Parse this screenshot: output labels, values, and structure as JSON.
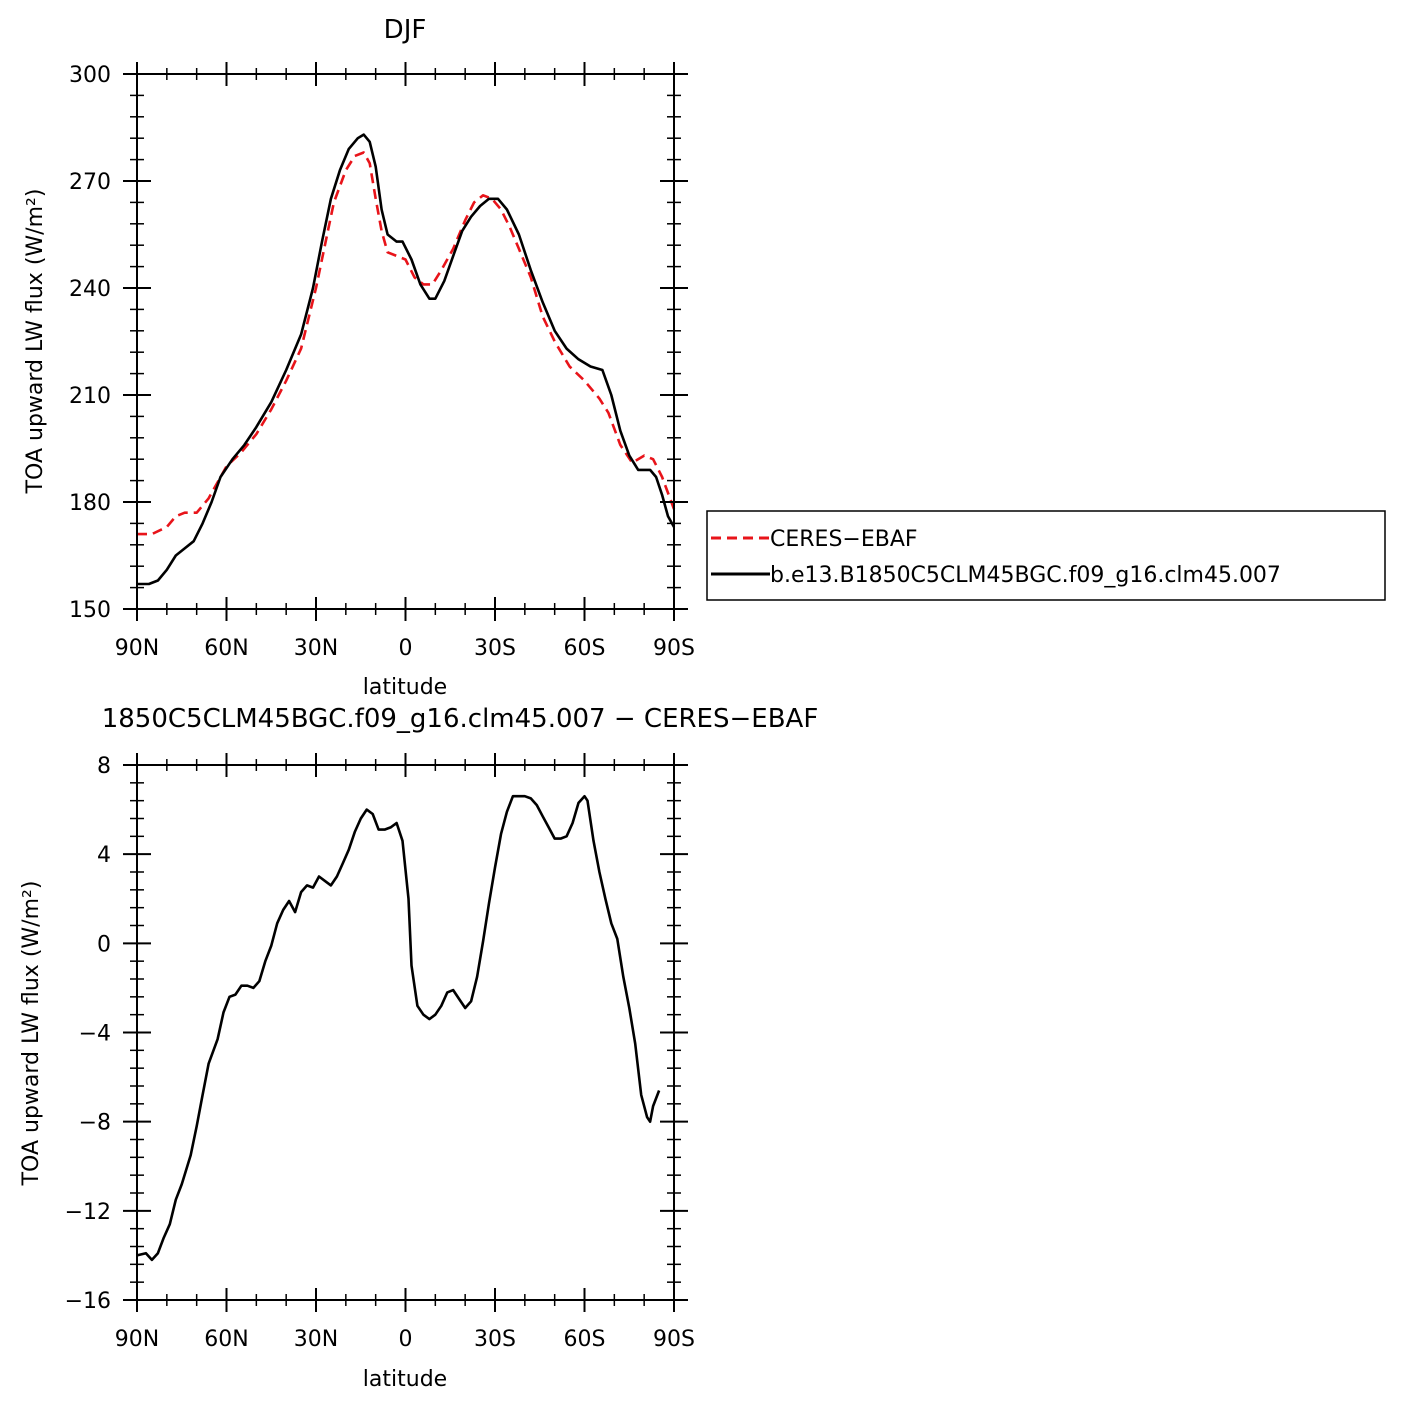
{
  "chart_data": [
    {
      "type": "line",
      "title": "DJF",
      "xlabel": "latitude",
      "ylabel": "TOA upward LW flux (W/m²)",
      "xlim": [
        -90,
        90
      ],
      "ylim": [
        150,
        300
      ],
      "xticks": [
        -90,
        -60,
        -30,
        0,
        30,
        60,
        90
      ],
      "xtick_labels": [
        "90N",
        "60N",
        "30N",
        "0",
        "30S",
        "60S",
        "90S"
      ],
      "yticks": [
        150,
        180,
        210,
        240,
        270,
        300
      ],
      "ytick_labels": [
        "150",
        "180",
        "210",
        "240",
        "270",
        "300"
      ],
      "legend": "right",
      "series": [
        {
          "name": "CERES−EBAF",
          "color": "#e8141a",
          "dash": "dashed",
          "points": [
            [
              -90,
              171
            ],
            [
              -85,
              171
            ],
            [
              -80,
              173
            ],
            [
              -77,
              176
            ],
            [
              -74,
              177
            ],
            [
              -70,
              177
            ],
            [
              -66,
              181
            ],
            [
              -60,
              190
            ],
            [
              -55,
              194
            ],
            [
              -50,
              199
            ],
            [
              -45,
              206
            ],
            [
              -40,
              214
            ],
            [
              -35,
              223
            ],
            [
              -30,
              240
            ],
            [
              -26,
              256
            ],
            [
              -24,
              264
            ],
            [
              -20,
              273
            ],
            [
              -17,
              277
            ],
            [
              -14,
              278
            ],
            [
              -12,
              275
            ],
            [
              -10,
              265
            ],
            [
              -8,
              256
            ],
            [
              -6,
              250
            ],
            [
              -3,
              249
            ],
            [
              0,
              248
            ],
            [
              3,
              243
            ],
            [
              6,
              241
            ],
            [
              9,
              241
            ],
            [
              12,
              245
            ],
            [
              16,
              251
            ],
            [
              20,
              259
            ],
            [
              23,
              264
            ],
            [
              26,
              266
            ],
            [
              29,
              265
            ],
            [
              32,
              262
            ],
            [
              35,
              257
            ],
            [
              38,
              251
            ],
            [
              42,
              243
            ],
            [
              46,
              232
            ],
            [
              50,
              225
            ],
            [
              55,
              218
            ],
            [
              60,
              214
            ],
            [
              65,
              209
            ],
            [
              68,
              205
            ],
            [
              72,
              196
            ],
            [
              76,
              191
            ],
            [
              80,
              193
            ],
            [
              83,
              192
            ],
            [
              86,
              187
            ],
            [
              90,
              178
            ]
          ]
        },
        {
          "name": "b.e13.B1850C5CLM45BGC.f09_g16.clm45.007",
          "color": "#000000",
          "dash": "solid",
          "points": [
            [
              -90,
              157
            ],
            [
              -86,
              157
            ],
            [
              -83,
              158
            ],
            [
              -80,
              161
            ],
            [
              -77,
              165
            ],
            [
              -74,
              167
            ],
            [
              -71,
              169
            ],
            [
              -68,
              174
            ],
            [
              -65,
              180
            ],
            [
              -62,
              187
            ],
            [
              -58,
              192
            ],
            [
              -54,
              196
            ],
            [
              -50,
              201
            ],
            [
              -45,
              208
            ],
            [
              -40,
              217
            ],
            [
              -35,
              227
            ],
            [
              -31,
              240
            ],
            [
              -28,
              253
            ],
            [
              -25,
              265
            ],
            [
              -22,
              273
            ],
            [
              -19,
              279
            ],
            [
              -16,
              282
            ],
            [
              -14,
              283
            ],
            [
              -12,
              281
            ],
            [
              -10,
              274
            ],
            [
              -8,
              262
            ],
            [
              -6,
              255
            ],
            [
              -3,
              253
            ],
            [
              -1,
              253
            ],
            [
              2,
              248
            ],
            [
              5,
              241
            ],
            [
              8,
              237
            ],
            [
              10,
              237
            ],
            [
              13,
              242
            ],
            [
              16,
              249
            ],
            [
              19,
              256
            ],
            [
              22,
              260
            ],
            [
              25,
              263
            ],
            [
              28,
              265
            ],
            [
              31,
              265
            ],
            [
              34,
              262
            ],
            [
              38,
              255
            ],
            [
              42,
              245
            ],
            [
              46,
              236
            ],
            [
              50,
              228
            ],
            [
              54,
              223
            ],
            [
              58,
              220
            ],
            [
              62,
              218
            ],
            [
              66,
              217
            ],
            [
              69,
              210
            ],
            [
              72,
              200
            ],
            [
              75,
              193
            ],
            [
              78,
              189
            ],
            [
              82,
              189
            ],
            [
              84,
              187
            ],
            [
              86,
              182
            ],
            [
              88,
              176
            ],
            [
              90,
              173
            ]
          ]
        }
      ]
    },
    {
      "type": "line",
      "title": "1850C5CLM45BGC.f09_g16.clm45.007 − CERES−EBAF",
      "xlabel": "latitude",
      "ylabel": "TOA upward LW flux (W/m²)",
      "xlim": [
        -90,
        90
      ],
      "ylim": [
        -16,
        8
      ],
      "xticks": [
        -90,
        -60,
        -30,
        0,
        30,
        60,
        90
      ],
      "xtick_labels": [
        "90N",
        "60N",
        "30N",
        "0",
        "30S",
        "60S",
        "90S"
      ],
      "yticks": [
        -16,
        -12,
        -8,
        -4,
        0,
        4,
        8
      ],
      "ytick_labels": [
        "−16",
        "−12",
        "−8",
        "−4",
        "0",
        "4",
        "8"
      ],
      "series": [
        {
          "name": "",
          "color": "#000000",
          "dash": "solid",
          "points": [
            [
              -90,
              -14
            ],
            [
              -87,
              -13.9
            ],
            [
              -85,
              -14.2
            ],
            [
              -83,
              -13.9
            ],
            [
              -81,
              -13.2
            ],
            [
              -79,
              -12.6
            ],
            [
              -77,
              -11.5
            ],
            [
              -75,
              -10.8
            ],
            [
              -72,
              -9.5
            ],
            [
              -70,
              -8.2
            ],
            [
              -68,
              -6.8
            ],
            [
              -66,
              -5.4
            ],
            [
              -63,
              -4.3
            ],
            [
              -61,
              -3.1
            ],
            [
              -59,
              -2.4
            ],
            [
              -57,
              -2.3
            ],
            [
              -55,
              -1.9
            ],
            [
              -53,
              -1.9
            ],
            [
              -51,
              -2
            ],
            [
              -49,
              -1.7
            ],
            [
              -47,
              -0.8
            ],
            [
              -45,
              -0.1
            ],
            [
              -43,
              0.9
            ],
            [
              -41,
              1.5
            ],
            [
              -39,
              1.9
            ],
            [
              -37,
              1.4
            ],
            [
              -35,
              2.3
            ],
            [
              -33,
              2.6
            ],
            [
              -31,
              2.5
            ],
            [
              -29,
              3
            ],
            [
              -27,
              2.8
            ],
            [
              -25,
              2.6
            ],
            [
              -23,
              3
            ],
            [
              -21,
              3.6
            ],
            [
              -19,
              4.2
            ],
            [
              -17,
              5
            ],
            [
              -15,
              5.6
            ],
            [
              -13,
              6
            ],
            [
              -11,
              5.8
            ],
            [
              -9,
              5.1
            ],
            [
              -7,
              5.1
            ],
            [
              -5,
              5.2
            ],
            [
              -3,
              5.4
            ],
            [
              -1,
              4.6
            ],
            [
              1,
              2
            ],
            [
              2,
              -1
            ],
            [
              4,
              -2.8
            ],
            [
              6,
              -3.2
            ],
            [
              8,
              -3.4
            ],
            [
              10,
              -3.2
            ],
            [
              12,
              -2.8
            ],
            [
              14,
              -2.2
            ],
            [
              16,
              -2.1
            ],
            [
              18,
              -2.5
            ],
            [
              20,
              -2.9
            ],
            [
              22,
              -2.6
            ],
            [
              24,
              -1.5
            ],
            [
              26,
              0.1
            ],
            [
              28,
              1.8
            ],
            [
              30,
              3.4
            ],
            [
              32,
              4.9
            ],
            [
              34,
              5.9
            ],
            [
              36,
              6.6
            ],
            [
              38,
              6.6
            ],
            [
              40,
              6.6
            ],
            [
              42,
              6.5
            ],
            [
              44,
              6.2
            ],
            [
              46,
              5.7
            ],
            [
              48,
              5.2
            ],
            [
              50,
              4.7
            ],
            [
              52,
              4.7
            ],
            [
              54,
              4.8
            ],
            [
              56,
              5.4
            ],
            [
              58,
              6.3
            ],
            [
              60,
              6.6
            ],
            [
              61,
              6.4
            ],
            [
              63,
              4.6
            ],
            [
              65,
              3.2
            ],
            [
              67,
              2
            ],
            [
              69,
              0.9
            ],
            [
              71,
              0.2
            ],
            [
              73,
              -1.5
            ],
            [
              75,
              -2.9
            ],
            [
              77,
              -4.5
            ],
            [
              79,
              -6.8
            ],
            [
              81,
              -7.8
            ],
            [
              82,
              -8
            ],
            [
              83,
              -7.3
            ],
            [
              85,
              -6.6
            ]
          ]
        }
      ]
    }
  ]
}
